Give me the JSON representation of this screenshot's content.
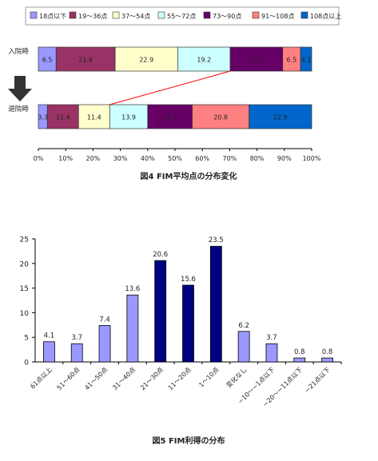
{
  "chart_data": [
    {
      "type": "bar",
      "orientation": "horizontal",
      "stacked": true,
      "percent_stacked": true,
      "title": "図4 FIM平均点の分布変化",
      "categories": [
        "入院時",
        "退院時"
      ],
      "series": [
        {
          "name": "18点以下",
          "color": "#9999ff",
          "values": [
            6.5,
            3.3
          ]
        },
        {
          "name": "19〜36点",
          "color": "#993366",
          "values": [
            21.6,
            11.4
          ]
        },
        {
          "name": "37〜54点",
          "color": "#ffffcc",
          "values": [
            22.9,
            11.4
          ]
        },
        {
          "name": "55〜72点",
          "color": "#ccffff",
          "values": [
            19.2,
            13.9
          ]
        },
        {
          "name": "73〜90点",
          "color": "#660066",
          "values": [
            19.2,
            16.3
          ]
        },
        {
          "name": "91〜108点",
          "color": "#ff8080",
          "values": [
            6.5,
            20.8
          ]
        },
        {
          "name": "108点以上",
          "color": "#0066cc",
          "values": [
            4.1,
            22.9
          ]
        }
      ],
      "xticks": [
        "0%",
        "10%",
        "20%",
        "30%",
        "40%",
        "50%",
        "60%",
        "70%",
        "80%",
        "90%",
        "100%"
      ],
      "xlim": [
        0,
        100
      ],
      "legend": "top",
      "grid": false
    },
    {
      "type": "bar",
      "title": "図5 FIM利得の分布",
      "categories": [
        "61点以上",
        "51〜60点",
        "41〜50点",
        "31〜40点",
        "21〜30点",
        "11〜20点",
        "1〜10点",
        "変化なし",
        "−10〜−1点以下",
        "−20〜−11点以下",
        "−21点以下"
      ],
      "values": [
        4.1,
        3.7,
        7.4,
        13.6,
        20.6,
        15.6,
        23.5,
        6.2,
        3.7,
        0.8,
        0.8
      ],
      "bar_colors": [
        "#9999ff",
        "#9999ff",
        "#9999ff",
        "#9999ff",
        "#000080",
        "#000080",
        "#000080",
        "#9999ff",
        "#9999ff",
        "#9999ff",
        "#9999ff"
      ],
      "yticks": [
        "0",
        "5",
        "10",
        "15",
        "20",
        "25"
      ],
      "ylim": [
        0,
        25
      ],
      "grid": false
    }
  ]
}
